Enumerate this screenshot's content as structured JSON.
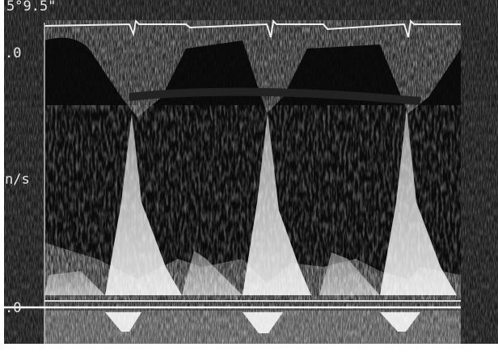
{
  "labels": {
    "top": "5°9.5\"",
    "scale_top": ".0",
    "unit": "n/s",
    "baseline": ".0"
  }
}
